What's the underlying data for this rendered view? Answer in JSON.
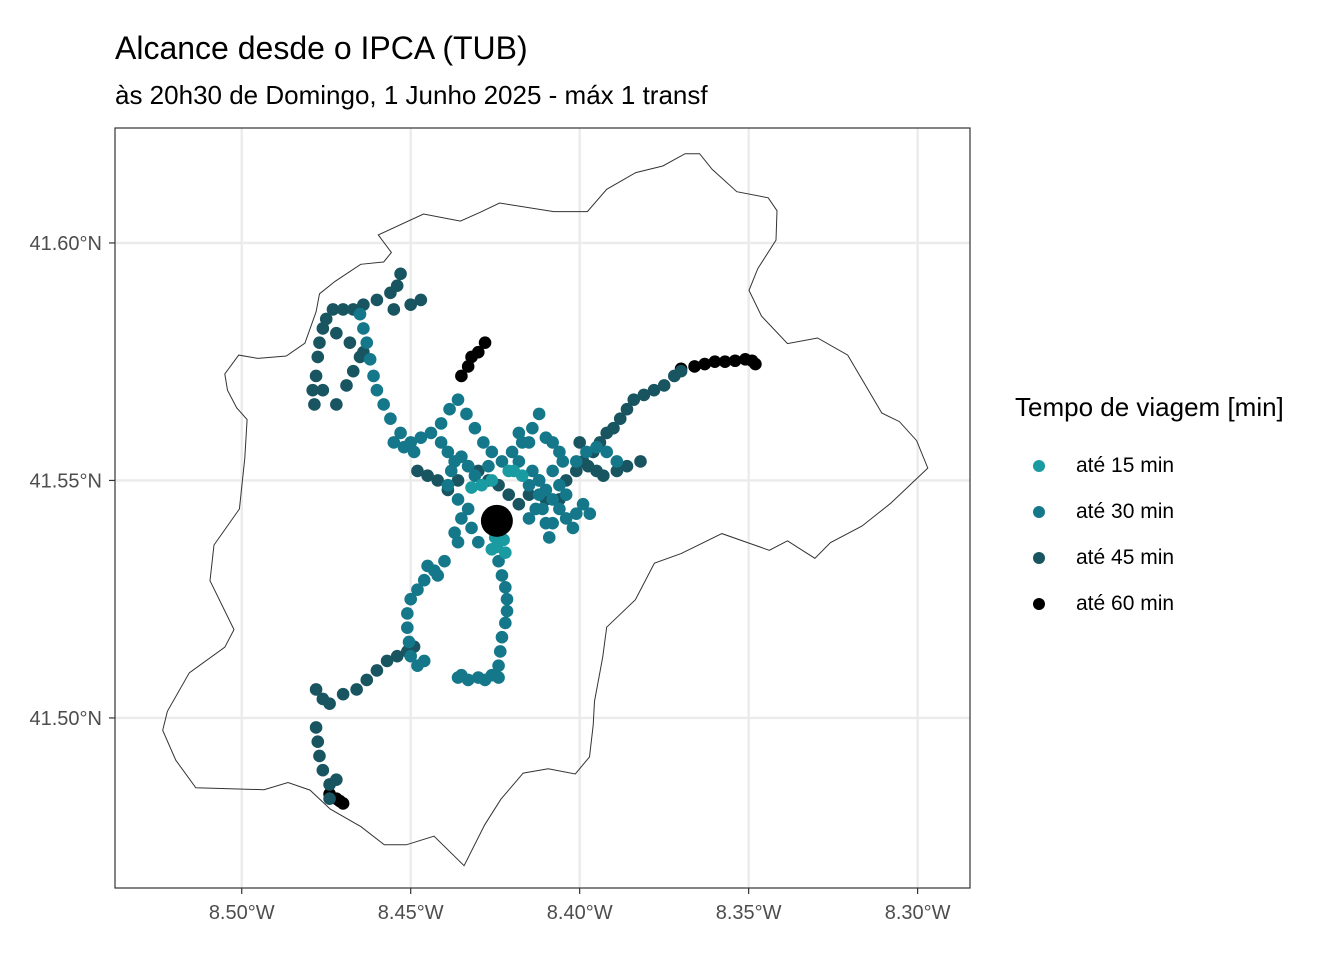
{
  "chart_data": {
    "type": "scatter",
    "title": "Alcance desde o IPCA (TUB)",
    "subtitle": "às 20h30 de Domingo, 1 Junho 2025 - máx 1 transf",
    "xlim": [
      -8.5375,
      -8.2845
    ],
    "ylim": [
      41.4642,
      41.6242
    ],
    "x_ticks": [
      {
        "value": -8.5,
        "label": "8.50°W"
      },
      {
        "value": -8.45,
        "label": "8.45°W"
      },
      {
        "value": -8.4,
        "label": "8.40°W"
      },
      {
        "value": -8.35,
        "label": "8.35°W"
      },
      {
        "value": -8.3,
        "label": "8.30°W"
      }
    ],
    "y_ticks": [
      {
        "value": 41.5,
        "label": "41.50°N"
      },
      {
        "value": 41.55,
        "label": "41.55°N"
      },
      {
        "value": 41.6,
        "label": "41.60°N"
      }
    ],
    "grid": true,
    "legend": {
      "title": "Tempo de viagem [min]",
      "position": "right",
      "items": [
        {
          "label": "até 15 min",
          "color": "#1a9ba1"
        },
        {
          "label": "até 30 min",
          "color": "#14788a"
        },
        {
          "label": "até 45 min",
          "color": "#185560"
        },
        {
          "label": "até 60 min",
          "color": "#000000"
        }
      ]
    },
    "origin": {
      "x": -8.4245,
      "y": 41.5415
    },
    "boundary": [
      [
        -8.4596,
        41.6017
      ],
      [
        -8.4462,
        41.6061
      ],
      [
        -8.4353,
        41.6046
      ],
      [
        -8.4296,
        41.6064
      ],
      [
        -8.4237,
        41.6084
      ],
      [
        -8.4077,
        41.6066
      ],
      [
        -8.3977,
        41.6066
      ],
      [
        -8.392,
        41.6113
      ],
      [
        -8.3834,
        41.6148
      ],
      [
        -8.3754,
        41.6162
      ],
      [
        -8.3688,
        41.6188
      ],
      [
        -8.3645,
        41.6188
      ],
      [
        -8.3608,
        41.6155
      ],
      [
        -8.3535,
        41.6108
      ],
      [
        -8.3442,
        41.6095
      ],
      [
        -8.3416,
        41.6068
      ],
      [
        -8.3419,
        41.6006
      ],
      [
        -8.3473,
        41.5946
      ],
      [
        -8.3499,
        41.59
      ],
      [
        -8.3462,
        41.5846
      ],
      [
        -8.3385,
        41.5788
      ],
      [
        -8.3296,
        41.58
      ],
      [
        -8.3207,
        41.5764
      ],
      [
        -8.3106,
        41.5642
      ],
      [
        -8.3054,
        41.5624
      ],
      [
        -8.3003,
        41.5584
      ],
      [
        -8.297,
        41.5526
      ],
      [
        -8.3081,
        41.5451
      ],
      [
        -8.3165,
        41.5404
      ],
      [
        -8.3258,
        41.5369
      ],
      [
        -8.3304,
        41.5336
      ],
      [
        -8.3357,
        41.536
      ],
      [
        -8.3385,
        41.5373
      ],
      [
        -8.3439,
        41.5353
      ],
      [
        -8.3579,
        41.5388
      ],
      [
        -8.37,
        41.5346
      ],
      [
        -8.3779,
        41.5326
      ],
      [
        -8.3835,
        41.5249
      ],
      [
        -8.392,
        41.5191
      ],
      [
        -8.3932,
        41.5128
      ],
      [
        -8.3956,
        41.5035
      ],
      [
        -8.396,
        41.4985
      ],
      [
        -8.3971,
        41.4918
      ],
      [
        -8.4013,
        41.4882
      ],
      [
        -8.4093,
        41.4893
      ],
      [
        -8.4167,
        41.4884
      ],
      [
        -8.4233,
        41.4829
      ],
      [
        -8.4281,
        41.4775
      ],
      [
        -8.4342,
        41.4689
      ],
      [
        -8.4431,
        41.4751
      ],
      [
        -8.4513,
        41.4733
      ],
      [
        -8.4578,
        41.4733
      ],
      [
        -8.4647,
        41.4771
      ],
      [
        -8.4738,
        41.4808
      ],
      [
        -8.4798,
        41.4848
      ],
      [
        -8.4863,
        41.4864
      ],
      [
        -8.4934,
        41.4849
      ],
      [
        -8.5136,
        41.4853
      ],
      [
        -8.5195,
        41.4911
      ],
      [
        -8.5234,
        41.4974
      ],
      [
        -8.522,
        41.5014
      ],
      [
        -8.5155,
        41.5095
      ],
      [
        -8.505,
        41.5149
      ],
      [
        -8.5023,
        41.5186
      ],
      [
        -8.5094,
        41.5289
      ],
      [
        -8.5082,
        41.5364
      ],
      [
        -8.5007,
        41.544
      ],
      [
        -8.4991,
        41.5547
      ],
      [
        -8.4984,
        41.5628
      ],
      [
        -8.5015,
        41.5653
      ],
      [
        -8.5042,
        41.569
      ],
      [
        -8.505,
        41.5724
      ],
      [
        -8.5009,
        41.5764
      ],
      [
        -8.4952,
        41.5757
      ],
      [
        -8.4868,
        41.5762
      ],
      [
        -8.4813,
        41.5789
      ],
      [
        -8.478,
        41.5855
      ],
      [
        -8.477,
        41.5893
      ],
      [
        -8.4724,
        41.5919
      ],
      [
        -8.4648,
        41.5955
      ],
      [
        -8.458,
        41.596
      ],
      [
        -8.4557,
        41.598
      ]
    ],
    "series": [
      {
        "name": "até 15 min",
        "color": "#1a9ba1",
        "points": [
          [
            -8.4245,
            41.536
          ],
          [
            -8.422,
            41.5348
          ],
          [
            -8.426,
            41.5355
          ],
          [
            -8.425,
            41.538
          ],
          [
            -8.4225,
            41.5375
          ],
          [
            -8.4195,
            41.552
          ],
          [
            -8.417,
            41.551
          ],
          [
            -8.421,
            41.552
          ],
          [
            -8.426,
            41.55
          ],
          [
            -8.432,
            41.5485
          ],
          [
            -8.429,
            41.549
          ]
        ]
      },
      {
        "name": "até 30 min",
        "color": "#14788a",
        "points": [
          [
            -8.465,
            41.585
          ],
          [
            -8.464,
            41.582
          ],
          [
            -8.463,
            41.579
          ],
          [
            -8.462,
            41.5755
          ],
          [
            -8.461,
            41.572
          ],
          [
            -8.46,
            41.569
          ],
          [
            -8.458,
            41.566
          ],
          [
            -8.456,
            41.563
          ],
          [
            -8.453,
            41.56
          ],
          [
            -8.45,
            41.558
          ],
          [
            -8.447,
            41.559
          ],
          [
            -8.444,
            41.56
          ],
          [
            -8.441,
            41.562
          ],
          [
            -8.4385,
            41.565
          ],
          [
            -8.436,
            41.567
          ],
          [
            -8.4335,
            41.564
          ],
          [
            -8.431,
            41.561
          ],
          [
            -8.4285,
            41.558
          ],
          [
            -8.426,
            41.556
          ],
          [
            -8.423,
            41.554
          ],
          [
            -8.42,
            41.556
          ],
          [
            -8.417,
            41.558
          ],
          [
            -8.414,
            41.561
          ],
          [
            -8.412,
            41.564
          ],
          [
            -8.415,
            41.558
          ],
          [
            -8.418,
            41.56
          ],
          [
            -8.41,
            41.559
          ],
          [
            -8.408,
            41.558
          ],
          [
            -8.406,
            41.556
          ],
          [
            -8.435,
            41.555
          ],
          [
            -8.433,
            41.553
          ],
          [
            -8.431,
            41.551
          ],
          [
            -8.427,
            41.553
          ],
          [
            -8.438,
            41.552
          ],
          [
            -8.439,
            41.549
          ],
          [
            -8.436,
            41.546
          ],
          [
            -8.433,
            41.544
          ],
          [
            -8.435,
            41.542
          ],
          [
            -8.437,
            41.539
          ],
          [
            -8.436,
            41.537
          ],
          [
            -8.432,
            41.54
          ],
          [
            -8.43,
            41.537
          ],
          [
            -8.424,
            41.533
          ],
          [
            -8.423,
            41.53
          ],
          [
            -8.422,
            41.5275
          ],
          [
            -8.4215,
            41.525
          ],
          [
            -8.4215,
            41.5225
          ],
          [
            -8.422,
            41.52
          ],
          [
            -8.423,
            41.517
          ],
          [
            -8.4235,
            41.514
          ],
          [
            -8.424,
            41.511
          ],
          [
            -8.424,
            41.5085
          ],
          [
            -8.426,
            41.509
          ],
          [
            -8.428,
            41.508
          ],
          [
            -8.43,
            41.5085
          ],
          [
            -8.433,
            41.508
          ],
          [
            -8.436,
            41.5085
          ],
          [
            -8.435,
            41.509
          ],
          [
            -8.44,
            41.533
          ],
          [
            -8.443,
            41.531
          ],
          [
            -8.446,
            41.529
          ],
          [
            -8.448,
            41.527
          ],
          [
            -8.45,
            41.525
          ],
          [
            -8.451,
            41.522
          ],
          [
            -8.451,
            41.519
          ],
          [
            -8.4505,
            41.516
          ],
          [
            -8.45,
            41.513
          ],
          [
            -8.448,
            41.511
          ],
          [
            -8.446,
            41.512
          ],
          [
            -8.442,
            41.53
          ],
          [
            -8.445,
            41.532
          ],
          [
            -8.415,
            41.549
          ],
          [
            -8.412,
            41.547
          ],
          [
            -8.411,
            41.544
          ],
          [
            -8.41,
            41.541
          ],
          [
            -8.409,
            41.538
          ],
          [
            -8.408,
            41.541
          ],
          [
            -8.406,
            41.544
          ],
          [
            -8.404,
            41.542
          ],
          [
            -8.402,
            41.54
          ],
          [
            -8.401,
            41.543
          ],
          [
            -8.399,
            41.545
          ],
          [
            -8.397,
            41.543
          ],
          [
            -8.404,
            41.547
          ],
          [
            -8.406,
            41.549
          ],
          [
            -8.408,
            41.552
          ],
          [
            -8.405,
            41.554
          ],
          [
            -8.401,
            41.554
          ],
          [
            -8.398,
            41.556
          ],
          [
            -8.395,
            41.557
          ],
          [
            -8.392,
            41.556
          ],
          [
            -8.389,
            41.554
          ],
          [
            -8.418,
            41.554
          ],
          [
            -8.414,
            41.552
          ],
          [
            -8.412,
            41.55
          ],
          [
            -8.41,
            41.548
          ],
          [
            -8.408,
            41.546
          ],
          [
            -8.413,
            41.544
          ],
          [
            -8.415,
            41.542
          ],
          [
            -8.441,
            41.558
          ],
          [
            -8.439,
            41.556
          ],
          [
            -8.437,
            41.554
          ],
          [
            -8.449,
            41.556
          ],
          [
            -8.452,
            41.557
          ],
          [
            -8.455,
            41.558
          ]
        ]
      },
      {
        "name": "até 45 min",
        "color": "#185560",
        "points": [
          [
            -8.479,
            41.569
          ],
          [
            -8.4785,
            41.566
          ],
          [
            -8.478,
            41.572
          ],
          [
            -8.4775,
            41.576
          ],
          [
            -8.477,
            41.579
          ],
          [
            -8.476,
            41.582
          ],
          [
            -8.475,
            41.584
          ],
          [
            -8.473,
            41.586
          ],
          [
            -8.47,
            41.586
          ],
          [
            -8.467,
            41.586
          ],
          [
            -8.464,
            41.587
          ],
          [
            -8.46,
            41.588
          ],
          [
            -8.456,
            41.5895
          ],
          [
            -8.454,
            41.591
          ],
          [
            -8.453,
            41.5935
          ],
          [
            -8.455,
            41.586
          ],
          [
            -8.45,
            41.587
          ],
          [
            -8.447,
            41.588
          ],
          [
            -8.476,
            41.569
          ],
          [
            -8.472,
            41.566
          ],
          [
            -8.469,
            41.57
          ],
          [
            -8.467,
            41.573
          ],
          [
            -8.465,
            41.576
          ],
          [
            -8.472,
            41.581
          ],
          [
            -8.468,
            41.579
          ],
          [
            -8.464,
            41.577
          ],
          [
            -8.478,
            41.506
          ],
          [
            -8.476,
            41.504
          ],
          [
            -8.474,
            41.503
          ],
          [
            -8.47,
            41.505
          ],
          [
            -8.466,
            41.506
          ],
          [
            -8.463,
            41.508
          ],
          [
            -8.46,
            41.51
          ],
          [
            -8.457,
            41.512
          ],
          [
            -8.454,
            41.513
          ],
          [
            -8.451,
            41.514
          ],
          [
            -8.449,
            41.515
          ],
          [
            -8.478,
            41.498
          ],
          [
            -8.4775,
            41.495
          ],
          [
            -8.477,
            41.492
          ],
          [
            -8.476,
            41.489
          ],
          [
            -8.474,
            41.486
          ],
          [
            -8.474,
            41.483
          ],
          [
            -8.472,
            41.487
          ],
          [
            -8.43,
            41.552
          ],
          [
            -8.433,
            41.553
          ],
          [
            -8.436,
            41.55
          ],
          [
            -8.439,
            41.548
          ],
          [
            -8.442,
            41.55
          ],
          [
            -8.445,
            41.551
          ],
          [
            -8.448,
            41.552
          ],
          [
            -8.427,
            41.55
          ],
          [
            -8.424,
            41.549
          ],
          [
            -8.421,
            41.547
          ],
          [
            -8.418,
            41.545
          ],
          [
            -8.415,
            41.547
          ],
          [
            -8.412,
            41.55
          ],
          [
            -8.41,
            41.546
          ],
          [
            -8.406,
            41.546
          ],
          [
            -8.404,
            41.55
          ],
          [
            -8.401,
            41.552
          ],
          [
            -8.399,
            41.554
          ],
          [
            -8.396,
            41.556
          ],
          [
            -8.394,
            41.558
          ],
          [
            -8.392,
            41.56
          ],
          [
            -8.39,
            41.561
          ],
          [
            -8.388,
            41.563
          ],
          [
            -8.386,
            41.565
          ],
          [
            -8.384,
            41.567
          ],
          [
            -8.381,
            41.568
          ],
          [
            -8.378,
            41.569
          ],
          [
            -8.375,
            41.57
          ],
          [
            -8.372,
            41.572
          ],
          [
            -8.37,
            41.573
          ],
          [
            -8.4,
            41.558
          ],
          [
            -8.3975,
            41.553
          ],
          [
            -8.395,
            41.552
          ],
          [
            -8.393,
            41.551
          ],
          [
            -8.389,
            41.552
          ],
          [
            -8.386,
            41.553
          ],
          [
            -8.382,
            41.554
          ]
        ]
      },
      {
        "name": "até 60 min",
        "color": "#000000",
        "points": [
          [
            -8.428,
            41.579
          ],
          [
            -8.43,
            41.577
          ],
          [
            -8.432,
            41.576
          ],
          [
            -8.433,
            41.574
          ],
          [
            -8.435,
            41.572
          ],
          [
            -8.37,
            41.5735
          ],
          [
            -8.366,
            41.574
          ],
          [
            -8.363,
            41.5745
          ],
          [
            -8.36,
            41.575
          ],
          [
            -8.357,
            41.575
          ],
          [
            -8.354,
            41.5752
          ],
          [
            -8.351,
            41.5755
          ],
          [
            -8.349,
            41.5752
          ],
          [
            -8.348,
            41.5745
          ],
          [
            -8.474,
            41.484
          ],
          [
            -8.472,
            41.483
          ],
          [
            -8.471,
            41.4825
          ],
          [
            -8.47,
            41.482
          ]
        ]
      }
    ]
  }
}
